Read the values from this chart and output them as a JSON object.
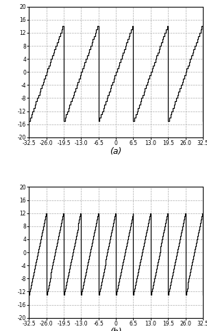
{
  "xlim": [
    -32.5,
    32.5
  ],
  "ylim_a": [
    -20,
    20
  ],
  "ylim_b": [
    -20,
    20
  ],
  "xticks": [
    -32.5,
    -26.0,
    -19.5,
    -13.0,
    -6.5,
    0,
    6.5,
    13.0,
    19.5,
    26.0,
    32.5
  ],
  "yticks_a": [
    -20,
    -16,
    -12,
    -8,
    -4,
    0,
    4,
    8,
    12,
    16,
    20
  ],
  "yticks_b": [
    -20,
    -16,
    -12,
    -8,
    -4,
    0,
    4,
    8,
    12,
    16,
    20
  ],
  "xlabel_a": "(a)",
  "xlabel_b": "(b)",
  "period_a": 13.0,
  "period_b": 6.5,
  "n_steps_a": 30,
  "n_steps_b": 26,
  "ymin_a": -15.0,
  "ymax_a": 15.0,
  "ymin_b": -13.0,
  "ymax_b": 13.0,
  "phase_a": 0.0,
  "phase_b": 0.0,
  "line_color": "#000000",
  "bg_color": "#ffffff",
  "grid_color": "#aaaaaa",
  "figsize": [
    3.02,
    4.84
  ],
  "dpi": 100
}
